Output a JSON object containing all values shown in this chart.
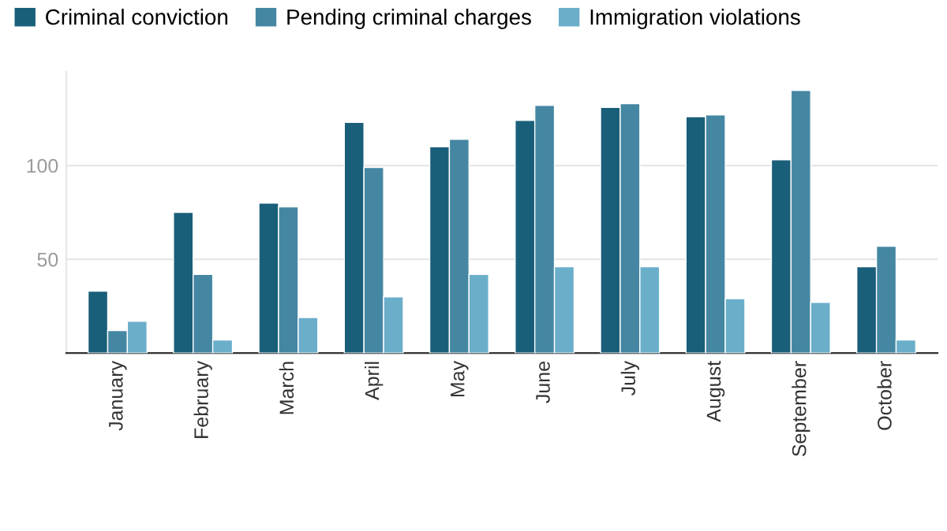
{
  "chart_data": {
    "type": "bar",
    "categories": [
      "January",
      "February",
      "March",
      "April",
      "May",
      "June",
      "July",
      "August",
      "September",
      "October"
    ],
    "series": [
      {
        "name": "Criminal conviction",
        "color": "#1a5f7a",
        "values": [
          33,
          75,
          80,
          123,
          110,
          124,
          131,
          126,
          103,
          46
        ]
      },
      {
        "name": "Pending criminal charges",
        "color": "#4587a3",
        "values": [
          12,
          42,
          78,
          99,
          114,
          132,
          133,
          127,
          140,
          57
        ]
      },
      {
        "name": "Immigration violations",
        "color": "#6aaeca",
        "values": [
          17,
          7,
          19,
          30,
          42,
          46,
          46,
          29,
          27,
          7
        ]
      }
    ],
    "ylim": [
      0,
      150
    ],
    "yticks": [
      {
        "value": 0,
        "label": null
      },
      50,
      100
    ],
    "grid": "y",
    "legend": "top left"
  }
}
